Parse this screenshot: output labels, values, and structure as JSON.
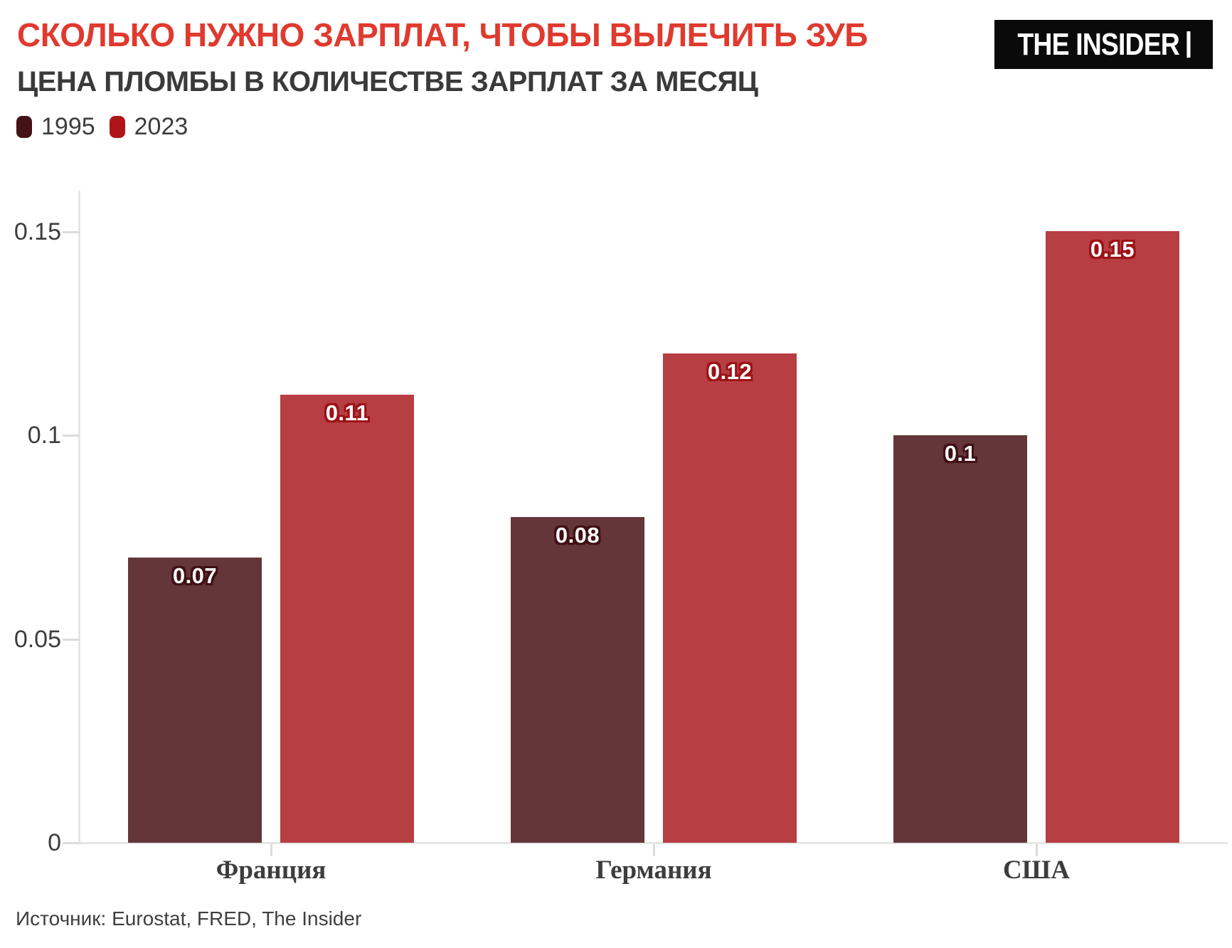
{
  "header": {
    "title": "СКОЛЬКО НУЖНО ЗАРПЛАТ, ЧТОБЫ ВЫЛЕЧИТЬ ЗУБ",
    "subtitle": "ЦЕНА ПЛОМБЫ В КОЛИЧЕСТВЕ ЗАРПЛАТ ЗА МЕСЯЦ",
    "logo_text": "THE INSIDER"
  },
  "legend": [
    {
      "label": "1995",
      "color": "#441217"
    },
    {
      "label": "2023",
      "color": "#b01418"
    }
  ],
  "source": "Источник: Eurostat, FRED, The Insider",
  "colors": {
    "title_red": "#e03a2f",
    "text_dark": "#3a3a3a",
    "axis_gray": "#e6e6e4",
    "tick_gray": "#dcdcdc",
    "logo_bg": "#0a0a0a",
    "logo_fg": "#ffffff"
  },
  "chart_data": {
    "type": "bar",
    "title": "СКОЛЬКО НУЖНО ЗАРПЛАТ, ЧТОБЫ ВЫЛЕЧИТЬ ЗУБ",
    "subtitle": "ЦЕНА ПЛОМБЫ В КОЛИЧЕСТВЕ ЗАРПЛАТ ЗА МЕСЯЦ",
    "categories": [
      "Франция",
      "Германия",
      "США"
    ],
    "series": [
      {
        "name": "1995",
        "color": "#653639",
        "label_outline": "#3f1014",
        "values": [
          0.07,
          0.08,
          0.1
        ],
        "labels": [
          "0.07",
          "0.08",
          "0.1"
        ]
      },
      {
        "name": "2023",
        "color": "#b73e43",
        "label_outline": "#9c1216",
        "values": [
          0.11,
          0.12,
          0.15
        ],
        "labels": [
          "0.11",
          "0.12",
          "0.15"
        ]
      }
    ],
    "y_ticks": [
      {
        "value": 0,
        "label": "0"
      },
      {
        "value": 0.05,
        "label": "0.05"
      },
      {
        "value": 0.1,
        "label": "0.1"
      },
      {
        "value": 0.15,
        "label": "0.15"
      }
    ],
    "ylim": [
      0,
      0.16
    ],
    "xlabel": "",
    "ylabel": "",
    "grid": false,
    "legend_position": "top-left",
    "source": "Источник: Eurostat, FRED, The Insider"
  }
}
